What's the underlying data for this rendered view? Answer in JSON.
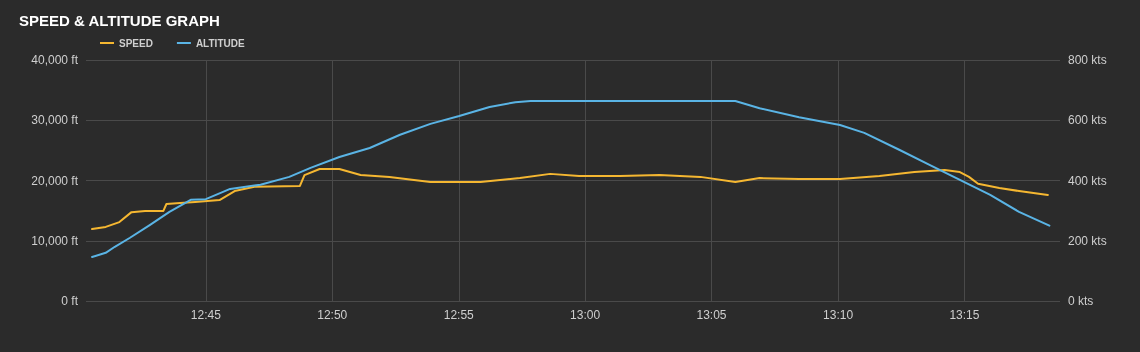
{
  "chart_data": {
    "type": "line",
    "title": "SPEED & ALTITUDE GRAPH",
    "legend": "top left",
    "grid": true,
    "marker": "none",
    "line_style": "solid",
    "xlim": [
      12.671,
      13.313
    ],
    "xticks": [
      {
        "value": 12.75,
        "label": "12:45"
      },
      {
        "value": 12.8333,
        "label": "12:50"
      },
      {
        "value": 12.9167,
        "label": "12:55"
      },
      {
        "value": 13.0,
        "label": "13:00"
      },
      {
        "value": 13.0833,
        "label": "13:05"
      },
      {
        "value": 13.1667,
        "label": "13:10"
      },
      {
        "value": 13.25,
        "label": "13:15"
      }
    ],
    "ylim": [
      0,
      40000
    ],
    "yticks": [
      {
        "value": 0,
        "label": "0 ft"
      },
      {
        "value": 10000,
        "label": "10,000 ft"
      },
      {
        "value": 20000,
        "label": "20,000 ft"
      },
      {
        "value": 30000,
        "label": "30,000 ft"
      },
      {
        "value": 40000,
        "label": "40,000 ft"
      }
    ],
    "y2lim": [
      0,
      800
    ],
    "y2ticks": [
      {
        "value": 0,
        "label": "0 kts"
      },
      {
        "value": 200,
        "label": "200 kts"
      },
      {
        "value": 400,
        "label": "400 kts"
      },
      {
        "value": 600,
        "label": "600 kts"
      },
      {
        "value": 800,
        "label": "800 kts"
      }
    ],
    "series": [
      {
        "name": "SPEED",
        "color": "#f5b731",
        "axis": "y2",
        "x": [
          12.675,
          12.684,
          12.693,
          12.701,
          12.71,
          12.722,
          12.724,
          12.733,
          12.743,
          12.759,
          12.769,
          12.782,
          12.812,
          12.815,
          12.825,
          12.838,
          12.852,
          12.871,
          12.898,
          12.931,
          12.957,
          12.977,
          12.996,
          13.023,
          13.049,
          13.076,
          13.099,
          13.115,
          13.141,
          13.168,
          13.194,
          13.217,
          13.237,
          13.247,
          13.253,
          13.259,
          13.273,
          13.286,
          13.305
        ],
        "values": [
          239,
          246,
          262,
          295,
          299,
          299,
          322,
          325,
          329,
          335,
          365,
          379,
          382,
          418,
          438,
          438,
          418,
          412,
          395,
          395,
          408,
          422,
          415,
          415,
          418,
          412,
          395,
          408,
          405,
          405,
          415,
          428,
          435,
          428,
          412,
          389,
          375,
          365,
          352
        ]
      },
      {
        "name": "ALTITUDE",
        "color": "#5ab4e5",
        "x": [
          12.675,
          12.684,
          12.69,
          12.7,
          12.713,
          12.726,
          12.74,
          12.75,
          12.766,
          12.786,
          12.805,
          12.819,
          12.838,
          12.858,
          12.878,
          12.898,
          12.917,
          12.937,
          12.954,
          12.964,
          13.099,
          13.115,
          13.141,
          13.168,
          13.184,
          13.207,
          13.227,
          13.247,
          13.267,
          13.286,
          13.306
        ],
        "values": [
          7300,
          8000,
          9000,
          10500,
          12600,
          14800,
          16800,
          16900,
          18600,
          19300,
          20600,
          22100,
          23900,
          25400,
          27600,
          29400,
          30700,
          32200,
          33000,
          33200,
          33200,
          32000,
          30500,
          29200,
          27900,
          25100,
          22600,
          20100,
          17600,
          14800,
          12500
        ]
      }
    ]
  }
}
